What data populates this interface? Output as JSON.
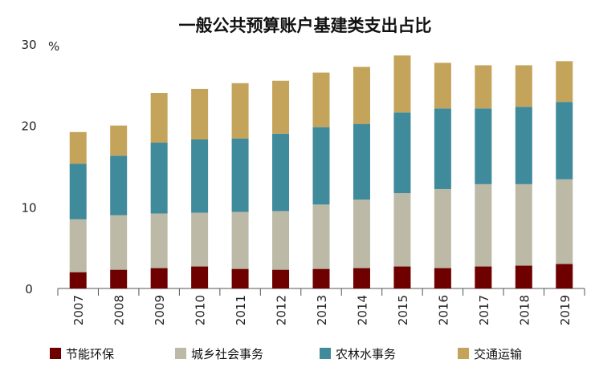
{
  "chart_data": {
    "type": "bar",
    "stacked": true,
    "title": "一般公共预算账户基建类支出占比",
    "ylabel": "",
    "xlabel": "",
    "y_unit_label": "%",
    "ylim": [
      0,
      30
    ],
    "yticks": [
      0,
      10,
      20,
      30
    ],
    "grid": false,
    "legend_position": "bottom",
    "categories": [
      "2007",
      "2008",
      "2009",
      "2010",
      "2011",
      "2012",
      "2013",
      "2014",
      "2015",
      "2016",
      "2017",
      "2018",
      "2019"
    ],
    "series": [
      {
        "name": "节能环保",
        "color": "#6e0000",
        "values": [
          2.0,
          2.3,
          2.5,
          2.7,
          2.4,
          2.3,
          2.4,
          2.5,
          2.7,
          2.5,
          2.7,
          2.8,
          3.0
        ]
      },
      {
        "name": "城乡社会事务",
        "color": "#bcbaa7",
        "values": [
          6.5,
          6.7,
          6.7,
          6.6,
          7.0,
          7.2,
          7.9,
          8.4,
          9.0,
          9.7,
          10.1,
          10.0,
          10.4
        ]
      },
      {
        "name": "农林水事务",
        "color": "#3f8a9b",
        "values": [
          6.8,
          7.3,
          8.7,
          9.0,
          9.0,
          9.5,
          9.5,
          9.3,
          9.9,
          9.9,
          9.3,
          9.5,
          9.5
        ]
      },
      {
        "name": "交通运输",
        "color": "#c4a45a",
        "values": [
          3.9,
          3.7,
          6.1,
          6.2,
          6.8,
          6.5,
          6.7,
          7.0,
          7.0,
          5.6,
          5.3,
          5.1,
          5.0
        ]
      }
    ]
  }
}
